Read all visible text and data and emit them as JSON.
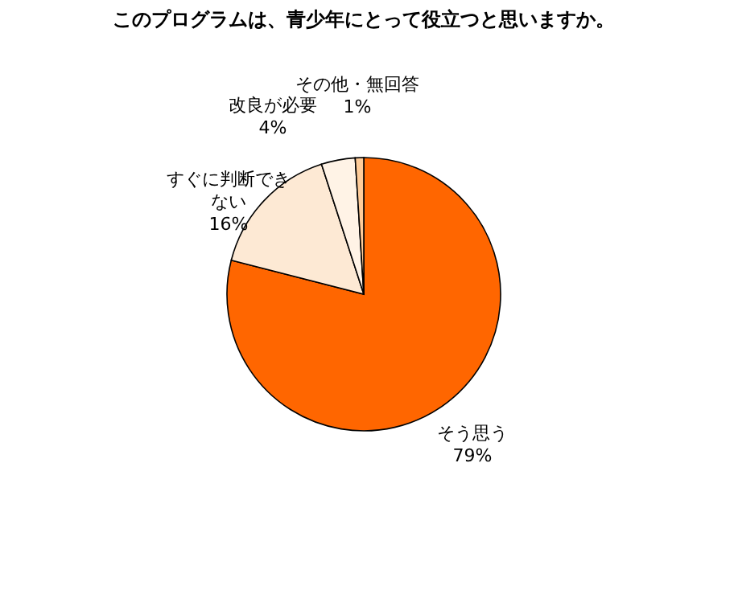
{
  "chart_data": {
    "type": "pie",
    "title": "このプログラムは、青少年にとって役立つと思いますか。",
    "categories": [
      "そう思う",
      "すぐに判断できない",
      "改良が必要",
      "その他・無回答"
    ],
    "values": [
      79,
      16,
      4,
      1
    ],
    "value_labels": [
      "79%",
      "16%",
      "4%",
      "1%"
    ],
    "colors": [
      "#ff6600",
      "#fde9d4",
      "#fff3e6",
      "#ffcc99"
    ],
    "legend": false
  }
}
